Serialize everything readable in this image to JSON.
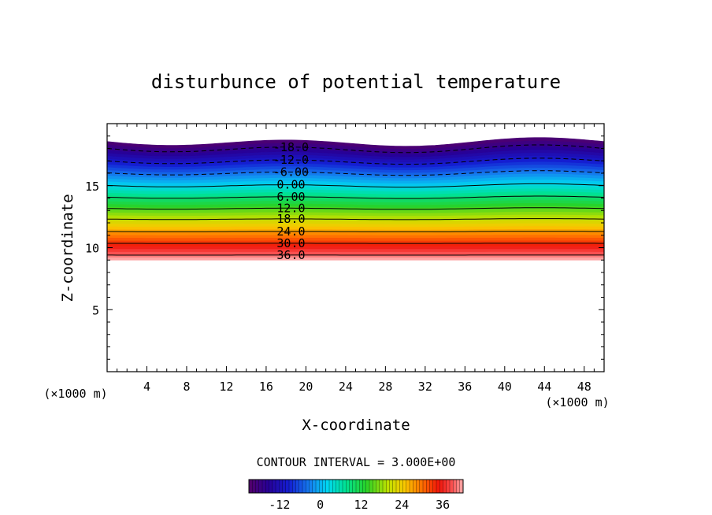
{
  "chart_data": {
    "type": "contour",
    "title": "disturbunce of potential temperature",
    "xlabel": "X-coordinate",
    "ylabel": "Z-coordinate",
    "x_unit": "(×1000 m)",
    "y_unit": "(×1000 m)",
    "xlim": [
      0,
      50
    ],
    "ylim": [
      0,
      20
    ],
    "xticks": [
      4,
      8,
      12,
      16,
      20,
      24,
      28,
      32,
      36,
      40,
      44,
      48
    ],
    "yticks": [
      5,
      10,
      15
    ],
    "grid": false,
    "contour_interval_text": "CONTOUR INTERVAL = 3.000E+00",
    "level_range": [
      -21,
      42
    ],
    "filled_z_range": [
      9,
      18.5
    ],
    "contours": [
      {
        "label": "-18.0",
        "z": 17.95,
        "value": -18
      },
      {
        "label": "-12.0",
        "z": 16.95,
        "value": -12
      },
      {
        "label": "-6.00",
        "z": 16.0,
        "value": -6
      },
      {
        "label": "0.00",
        "z": 15.0,
        "value": 0
      },
      {
        "label": "6.00",
        "z": 14.05,
        "value": 6
      },
      {
        "label": "12.0",
        "z": 13.15,
        "value": 12
      },
      {
        "label": "18.0",
        "z": 12.3,
        "value": 18
      },
      {
        "label": "24.0",
        "z": 11.3,
        "value": 24
      },
      {
        "label": "30.0",
        "z": 10.35,
        "value": 30
      },
      {
        "label": "36.0",
        "z": 9.4,
        "value": 36
      }
    ],
    "colorbar": {
      "range": [
        -21,
        42
      ],
      "ticks": [
        -12,
        0,
        12,
        24,
        36
      ],
      "tick_labels": [
        "-12",
        "0",
        "12",
        "24",
        "36"
      ]
    }
  }
}
